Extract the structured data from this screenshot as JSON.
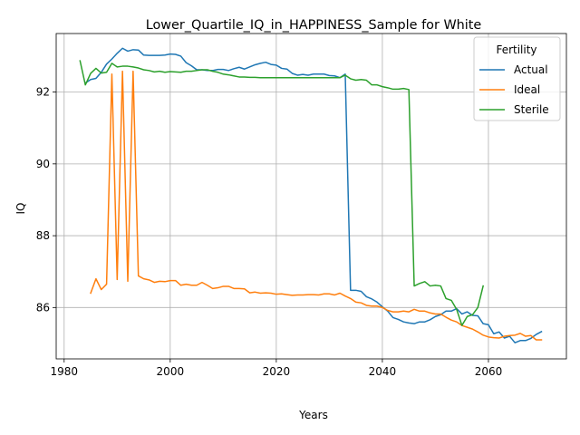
{
  "chart_data": {
    "type": "line",
    "title": "Lower_Quartile_IQ_in_HAPPINESS_Sample for White",
    "xlabel": "Years",
    "ylabel": "IQ",
    "xlim": [
      1978.5,
      2074.7
    ],
    "ylim": [
      84.57,
      93.63
    ],
    "xticks": [
      1980,
      2000,
      2020,
      2040,
      2060
    ],
    "yticks": [
      86,
      88,
      90,
      92
    ],
    "grid": true,
    "legend": {
      "title": "Fertility",
      "position": "upper right"
    },
    "colors": {
      "Actual": "#1f77b4",
      "Ideal": "#ff7f0e",
      "Sterile": "#2ca02c"
    },
    "series": [
      {
        "name": "Actual",
        "x": [
          1984,
          1985,
          1986,
          1987,
          1988,
          1989,
          1990,
          1991,
          1992,
          1993,
          1994,
          1995,
          1996,
          1997,
          1998,
          1999,
          2000,
          2001,
          2002,
          2003,
          2004,
          2005,
          2006,
          2007,
          2008,
          2009,
          2010,
          2011,
          2012,
          2013,
          2014,
          2015,
          2016,
          2017,
          2018,
          2019,
          2020,
          2021,
          2022,
          2023,
          2024,
          2025,
          2026,
          2027,
          2028,
          2029,
          2030,
          2031,
          2032,
          2033,
          2034,
          2035,
          2036,
          2037,
          2038,
          2039,
          2040,
          2041,
          2042,
          2043,
          2044,
          2045,
          2046,
          2047,
          2048,
          2049,
          2050,
          2051,
          2052,
          2053,
          2054,
          2055,
          2056,
          2057,
          2058,
          2059,
          2060,
          2061,
          2062,
          2063,
          2064,
          2065,
          2066,
          2067,
          2068,
          2069,
          2070
        ],
        "values": [
          92.25,
          92.35,
          92.38,
          92.55,
          92.78,
          92.92,
          93.08,
          93.22,
          93.14,
          93.18,
          93.17,
          93.03,
          93.02,
          93.02,
          93.02,
          93.03,
          93.06,
          93.05,
          93.0,
          92.82,
          92.73,
          92.62,
          92.62,
          92.6,
          92.6,
          92.63,
          92.63,
          92.6,
          92.65,
          92.69,
          92.64,
          92.7,
          92.76,
          92.8,
          92.83,
          92.77,
          92.75,
          92.66,
          92.64,
          92.52,
          92.47,
          92.49,
          92.47,
          92.5,
          92.5,
          92.5,
          92.46,
          92.45,
          92.4,
          92.5,
          86.48,
          86.48,
          86.45,
          86.3,
          86.24,
          86.15,
          86.02,
          85.9,
          85.72,
          85.67,
          85.6,
          85.57,
          85.55,
          85.6,
          85.6,
          85.66,
          85.75,
          85.8,
          85.9,
          85.9,
          85.97,
          85.82,
          85.88,
          85.78,
          85.77,
          85.55,
          85.52,
          85.27,
          85.32,
          85.15,
          85.2,
          85.02,
          85.08,
          85.08,
          85.14,
          85.25,
          85.33
        ]
      },
      {
        "name": "Ideal",
        "x": [
          1985,
          1986,
          1987,
          1988,
          1989,
          1990,
          1991,
          1992,
          1993,
          1994,
          1995,
          1996,
          1997,
          1998,
          1999,
          2000,
          2001,
          2002,
          2003,
          2004,
          2005,
          2006,
          2007,
          2008,
          2009,
          2010,
          2011,
          2012,
          2013,
          2014,
          2015,
          2016,
          2017,
          2018,
          2019,
          2020,
          2021,
          2022,
          2023,
          2024,
          2025,
          2026,
          2027,
          2028,
          2029,
          2030,
          2031,
          2032,
          2033,
          2034,
          2035,
          2036,
          2037,
          2038,
          2039,
          2040,
          2041,
          2042,
          2043,
          2044,
          2045,
          2046,
          2047,
          2048,
          2049,
          2050,
          2051,
          2052,
          2053,
          2054,
          2055,
          2056,
          2057,
          2058,
          2059,
          2060,
          2061,
          2062,
          2063,
          2064,
          2065,
          2066,
          2067,
          2068,
          2069,
          2070
        ],
        "values": [
          86.4,
          86.8,
          86.5,
          86.65,
          92.5,
          86.78,
          92.58,
          86.73,
          92.58,
          86.88,
          86.8,
          86.77,
          86.7,
          86.73,
          86.72,
          86.75,
          86.75,
          86.62,
          86.65,
          86.62,
          86.62,
          86.7,
          86.62,
          86.53,
          86.55,
          86.59,
          86.59,
          86.53,
          86.53,
          86.52,
          86.41,
          86.43,
          86.4,
          86.41,
          86.4,
          86.37,
          86.38,
          86.36,
          86.34,
          86.35,
          86.35,
          86.36,
          86.36,
          86.35,
          86.38,
          86.38,
          86.35,
          86.4,
          86.32,
          86.25,
          86.15,
          86.13,
          86.06,
          86.04,
          86.04,
          86.0,
          85.92,
          85.88,
          85.88,
          85.9,
          85.88,
          85.95,
          85.9,
          85.9,
          85.85,
          85.82,
          85.82,
          85.73,
          85.65,
          85.6,
          85.5,
          85.45,
          85.4,
          85.32,
          85.23,
          85.18,
          85.16,
          85.15,
          85.2,
          85.22,
          85.23,
          85.28,
          85.2,
          85.22,
          85.1,
          85.1
        ]
      },
      {
        "name": "Sterile",
        "x": [
          1983,
          1984,
          1985,
          1986,
          1987,
          1988,
          1989,
          1990,
          1991,
          1992,
          1993,
          1994,
          1995,
          1996,
          1997,
          1998,
          1999,
          2000,
          2001,
          2002,
          2003,
          2004,
          2005,
          2006,
          2007,
          2008,
          2009,
          2010,
          2011,
          2012,
          2013,
          2014,
          2015,
          2016,
          2017,
          2018,
          2019,
          2020,
          2021,
          2022,
          2023,
          2024,
          2025,
          2026,
          2027,
          2028,
          2029,
          2030,
          2031,
          2032,
          2033,
          2034,
          2035,
          2036,
          2037,
          2038,
          2039,
          2040,
          2041,
          2042,
          2043,
          2044,
          2045,
          2046,
          2047,
          2048,
          2049,
          2050,
          2051,
          2052,
          2053,
          2054,
          2055,
          2056,
          2057,
          2058,
          2059
        ],
        "values": [
          92.87,
          92.2,
          92.52,
          92.66,
          92.53,
          92.55,
          92.8,
          92.7,
          92.72,
          92.72,
          92.7,
          92.67,
          92.62,
          92.6,
          92.56,
          92.58,
          92.55,
          92.57,
          92.56,
          92.55,
          92.58,
          92.58,
          92.6,
          92.62,
          92.62,
          92.58,
          92.55,
          92.5,
          92.48,
          92.45,
          92.42,
          92.42,
          92.41,
          92.41,
          92.4,
          92.4,
          92.4,
          92.4,
          92.4,
          92.4,
          92.4,
          92.4,
          92.4,
          92.4,
          92.4,
          92.4,
          92.4,
          92.4,
          92.4,
          92.4,
          92.47,
          92.37,
          92.33,
          92.35,
          92.33,
          92.2,
          92.2,
          92.15,
          92.12,
          92.08,
          92.08,
          92.1,
          92.07,
          86.6,
          86.67,
          86.72,
          86.6,
          86.62,
          86.6,
          86.25,
          86.2,
          85.95,
          85.5,
          85.75,
          85.8,
          86.0,
          86.6
        ]
      }
    ]
  }
}
